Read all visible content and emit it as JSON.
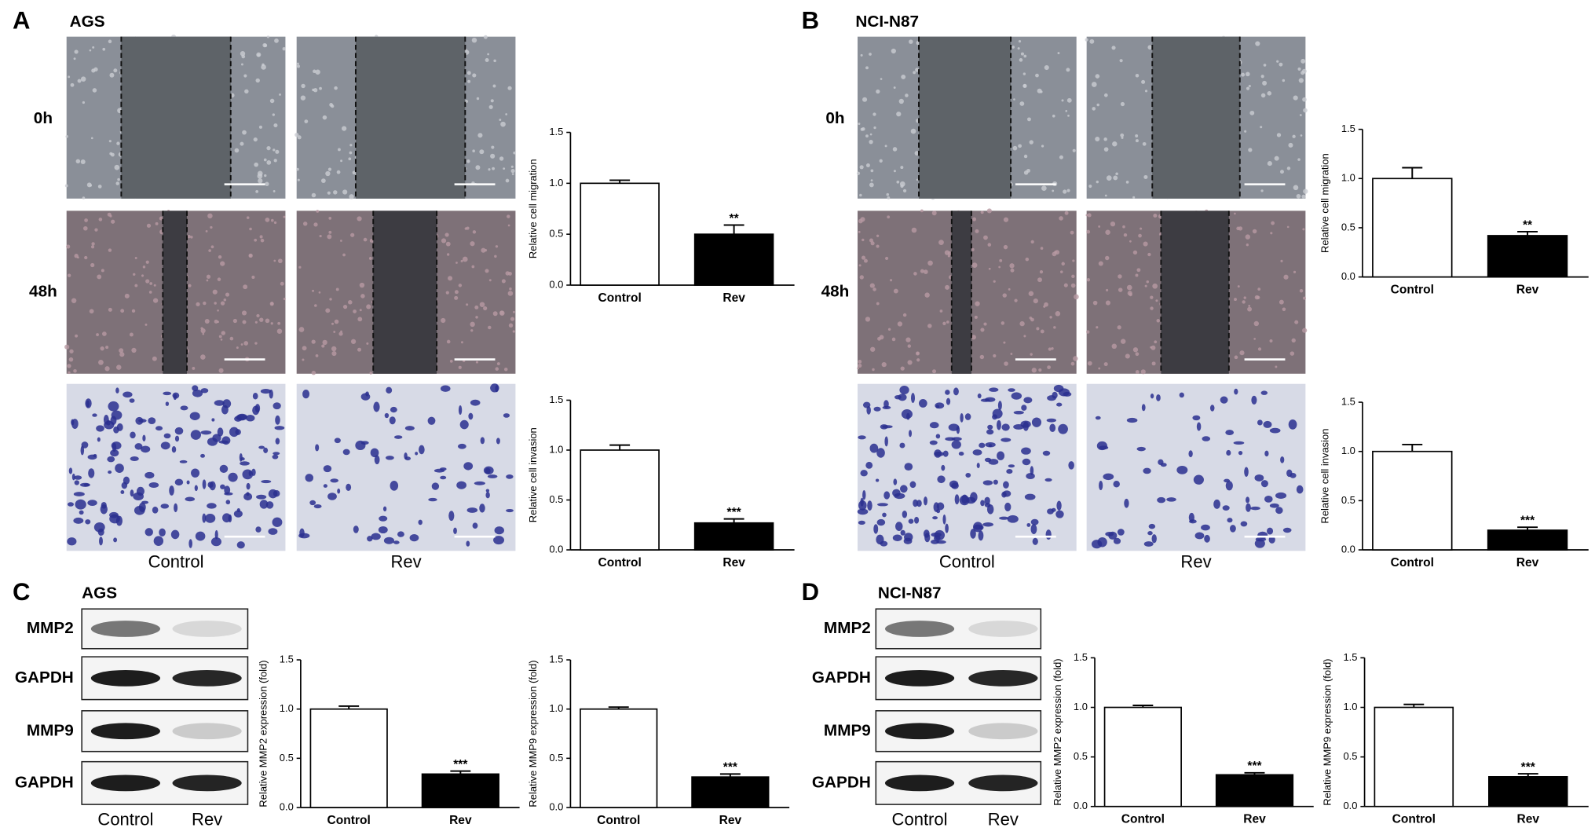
{
  "panels": [
    {
      "letter": "A",
      "cell_line": "AGS",
      "rows": [
        "0h",
        "48h"
      ],
      "columns": [
        "Control",
        "Rev"
      ]
    },
    {
      "letter": "B",
      "cell_line": "NCI-N87",
      "rows": [
        "0h",
        "48h"
      ],
      "columns": [
        "Control",
        "Rev"
      ]
    },
    {
      "letter": "C",
      "cell_line": "AGS",
      "blots": [
        "MMP2",
        "GAPDH",
        "MMP9",
        "GAPDH"
      ],
      "columns": [
        "Control",
        "Rev"
      ]
    },
    {
      "letter": "D",
      "cell_line": "NCI-N87",
      "blots": [
        "MMP2",
        "GAPDH",
        "MMP9",
        "GAPDH"
      ],
      "columns": [
        "Control",
        "Rev"
      ]
    }
  ],
  "chart_data": [
    {
      "type": "bar",
      "y_label": "Relative cell migration",
      "categories": [
        "Control",
        "Rev"
      ],
      "values": [
        1.0,
        0.5
      ],
      "errors": [
        0.03,
        0.09
      ],
      "annotations": [
        null,
        "**"
      ],
      "colors": [
        "#ffffff",
        "#000000"
      ],
      "ylim": [
        0,
        1.5
      ],
      "yticks": [
        {
          "value": 0,
          "label": "0.0"
        },
        0.5,
        {
          "value": 1,
          "label": "1.0"
        },
        1.5
      ]
    },
    {
      "type": "bar",
      "y_label": "Relative cell invasion",
      "categories": [
        "Control",
        "Rev"
      ],
      "values": [
        1.0,
        0.27
      ],
      "errors": [
        0.05,
        0.04
      ],
      "annotations": [
        null,
        "***"
      ],
      "colors": [
        "#ffffff",
        "#000000"
      ],
      "ylim": [
        0,
        1.5
      ],
      "yticks": [
        {
          "value": 0,
          "label": "0.0"
        },
        0.5,
        {
          "value": 1,
          "label": "1.0"
        },
        1.5
      ]
    },
    {
      "type": "bar",
      "y_label": "Relative cell migration",
      "categories": [
        "Control",
        "Rev"
      ],
      "values": [
        1.0,
        0.42
      ],
      "errors": [
        0.11,
        0.04
      ],
      "annotations": [
        null,
        "**"
      ],
      "colors": [
        "#ffffff",
        "#000000"
      ],
      "ylim": [
        0,
        1.5
      ],
      "yticks": [
        {
          "value": 0,
          "label": "0.0"
        },
        0.5,
        {
          "value": 1,
          "label": "1.0"
        },
        1.5
      ]
    },
    {
      "type": "bar",
      "y_label": "Relative cell invasion",
      "categories": [
        "Control",
        "Rev"
      ],
      "values": [
        1.0,
        0.2
      ],
      "errors": [
        0.07,
        0.03
      ],
      "annotations": [
        null,
        "***"
      ],
      "colors": [
        "#ffffff",
        "#000000"
      ],
      "ylim": [
        0,
        1.5
      ],
      "yticks": [
        {
          "value": 0,
          "label": "0.0"
        },
        0.5,
        {
          "value": 1,
          "label": "1.0"
        },
        1.5
      ]
    },
    {
      "type": "bar",
      "y_label": "Relative MMP2 expression (fold)",
      "categories": [
        "Control",
        "Rev"
      ],
      "values": [
        1.0,
        0.34
      ],
      "errors": [
        0.03,
        0.03
      ],
      "annotations": [
        null,
        "***"
      ],
      "colors": [
        "#ffffff",
        "#000000"
      ],
      "ylim": [
        0,
        1.5
      ],
      "yticks": [
        {
          "value": 0,
          "label": "0.0"
        },
        0.5,
        {
          "value": 1,
          "label": "1.0"
        },
        1.5
      ]
    },
    {
      "type": "bar",
      "y_label": "Relative MMP9 expression (fold)",
      "categories": [
        "Control",
        "Rev"
      ],
      "values": [
        1.0,
        0.31
      ],
      "errors": [
        0.02,
        0.03
      ],
      "annotations": [
        null,
        "***"
      ],
      "colors": [
        "#ffffff",
        "#000000"
      ],
      "ylim": [
        0,
        1.5
      ],
      "yticks": [
        {
          "value": 0,
          "label": "0.0"
        },
        0.5,
        {
          "value": 1,
          "label": "1.0"
        },
        1.5
      ]
    },
    {
      "type": "bar",
      "y_label": "Relative MMP2 expression (fold)",
      "categories": [
        "Control",
        "Rev"
      ],
      "values": [
        1.0,
        0.32
      ],
      "errors": [
        0.02,
        0.02
      ],
      "annotations": [
        null,
        "***"
      ],
      "colors": [
        "#ffffff",
        "#000000"
      ],
      "ylim": [
        0,
        1.5
      ],
      "yticks": [
        {
          "value": 0,
          "label": "0.0"
        },
        0.5,
        {
          "value": 1,
          "label": "1.0"
        },
        1.5
      ]
    },
    {
      "type": "bar",
      "y_label": "Relative MMP9 expression (fold)",
      "categories": [
        "Control",
        "Rev"
      ],
      "values": [
        1.0,
        0.3
      ],
      "errors": [
        0.03,
        0.03
      ],
      "annotations": [
        null,
        "***"
      ],
      "colors": [
        "#ffffff",
        "#000000"
      ],
      "ylim": [
        0,
        1.5
      ],
      "yticks": [
        {
          "value": 0,
          "label": "0.0"
        },
        0.5,
        {
          "value": 1,
          "label": "1.0"
        },
        1.5
      ]
    }
  ]
}
